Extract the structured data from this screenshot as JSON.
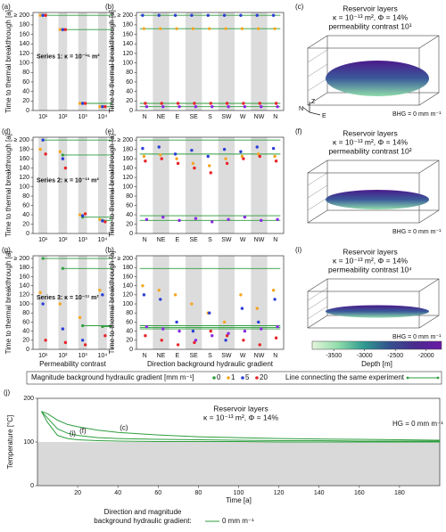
{
  "legend": {
    "title": "Magnitude background hydraulic gradient [mm m⁻¹]",
    "items": [
      {
        "label": "0",
        "color": "#2e9e3e"
      },
      {
        "label": "1",
        "color": "#f5a623"
      },
      {
        "label": "5",
        "color": "#2b3fd6"
      },
      {
        "label": "20",
        "color": "#e8252a"
      }
    ],
    "line_label": "Line connecting the same experiment",
    "line_color": "#2e9e3e"
  },
  "chart_data": [
    {
      "type": "scatter-contrast",
      "label": "(a)",
      "annotation": "Series 1: κ = 10⁻¹⁵ m²",
      "ylabel": "Time to thermal breakthrough [a]",
      "categories": [
        "10¹",
        "10²",
        "10³",
        "10⁴"
      ],
      "ylim": [
        0,
        206
      ],
      "yticks": [
        0,
        20,
        40,
        60,
        80,
        100,
        120,
        140,
        160,
        180,
        {
          "value": 200,
          "label": "≥ 200"
        }
      ],
      "lines": {
        "color": "#2e9e3e",
        "values": [
          200,
          170,
          15,
          8
        ]
      },
      "points": [
        {
          "color": "#f5a623",
          "values": [
            200,
            170,
            15,
            8
          ]
        },
        {
          "color": "#2b3fd6",
          "values": [
            200,
            170,
            15,
            8
          ]
        },
        {
          "color": "#e8252a",
          "values": [
            200,
            170,
            15,
            8
          ]
        }
      ]
    },
    {
      "type": "scatter-direction",
      "label": "(b)",
      "ylabel": "Time to thermal breakthrough [a]",
      "categories": [
        "N",
        "NE",
        "E",
        "SE",
        "S",
        "SW",
        "W",
        "NW",
        "N"
      ],
      "ylim": [
        0,
        206
      ],
      "yticks": [
        0,
        20,
        40,
        60,
        80,
        100,
        120,
        140,
        160,
        180,
        {
          "value": 200,
          "label": "≥ 200"
        }
      ],
      "lines": {
        "color": "#2e9e3e",
        "values": [
          200,
          172,
          15,
          8
        ]
      },
      "points": [
        {
          "color": "#2b3fd6",
          "values": [
            200,
            200,
            200,
            200,
            200,
            200,
            200,
            200,
            200
          ]
        },
        {
          "color": "#f5a623",
          "values": [
            172,
            172,
            172,
            172,
            172,
            172,
            172,
            172,
            172
          ]
        },
        {
          "color": "#e8252a",
          "values": [
            15,
            15,
            15,
            15,
            15,
            15,
            15,
            15,
            15
          ]
        },
        {
          "color": "#8a2be2",
          "values": [
            8,
            8,
            8,
            8,
            8,
            8,
            8,
            8,
            8
          ]
        }
      ]
    },
    {
      "type": "render",
      "label": "(c)",
      "title": "Reservoir layers",
      "subtitle": "κ = 10⁻¹³ m², Φ = 14%",
      "note": "permeability contrast 10¹",
      "annotation": "BHG = 0 mm m⁻¹",
      "axes": [
        "N",
        "Z",
        "E"
      ]
    },
    {
      "type": "scatter-contrast",
      "label": "(d)",
      "annotation": "Series 2: κ = 10⁻¹³ m²",
      "ylabel": "Time to thermal breakthrough [a]",
      "categories": [
        "10¹",
        "10²",
        "10³",
        "10⁴"
      ],
      "ylim": [
        0,
        206
      ],
      "yticks": [
        0,
        20,
        40,
        60,
        80,
        100,
        120,
        140,
        160,
        180,
        {
          "value": 200,
          "label": "≥ 200"
        }
      ],
      "lines": {
        "color": "#2e9e3e",
        "values": [
          200,
          168,
          35,
          28
        ]
      },
      "points": [
        {
          "color": "#f5a623",
          "values": [
            180,
            175,
            40,
            30
          ]
        },
        {
          "color": "#2b3fd6",
          "values": [
            200,
            160,
            38,
            27
          ]
        },
        {
          "color": "#e8252a",
          "values": [
            170,
            140,
            42,
            25
          ]
        }
      ]
    },
    {
      "type": "scatter-direction",
      "label": "(e)",
      "ylabel": "Time to thermal breakthrough [a]",
      "categories": [
        "N",
        "NE",
        "E",
        "SE",
        "S",
        "SW",
        "W",
        "NW",
        "N"
      ],
      "ylim": [
        0,
        206
      ],
      "yticks": [
        0,
        20,
        40,
        60,
        80,
        100,
        120,
        140,
        160,
        180,
        {
          "value": 200,
          "label": "≥ 200"
        }
      ],
      "lines": {
        "color": "#2e9e3e",
        "values": [
          200,
          170,
          38,
          28
        ]
      },
      "points": [
        {
          "color": "#2b3fd6",
          "values": [
            182,
            185,
            170,
            178,
            165,
            180,
            175,
            185,
            182
          ]
        },
        {
          "color": "#f5a623",
          "values": [
            165,
            168,
            160,
            150,
            145,
            160,
            165,
            170,
            165
          ]
        },
        {
          "color": "#e8252a",
          "values": [
            155,
            160,
            150,
            140,
            130,
            150,
            160,
            165,
            155
          ]
        },
        {
          "color": "#8a2be2",
          "values": [
            30,
            35,
            28,
            32,
            25,
            30,
            35,
            28,
            30
          ]
        }
      ]
    },
    {
      "type": "render",
      "label": "(f)",
      "title": "Reservoir layers",
      "subtitle": "κ = 10⁻¹³ m², Φ = 14%",
      "note": "permeability contrast 10²",
      "annotation": "BHG = 0 mm m⁻¹"
    },
    {
      "type": "scatter-contrast",
      "label": "(g)",
      "annotation": "Series 3: κ = 10⁻¹¹ m²",
      "ylabel": "Time to thermal breakthrough [a]",
      "xlabel": "Permeability contrast",
      "categories": [
        "10¹",
        "10²",
        "10³",
        "10⁴"
      ],
      "ylim": [
        0,
        206
      ],
      "yticks": [
        0,
        20,
        40,
        60,
        80,
        100,
        120,
        140,
        160,
        180,
        {
          "value": 200,
          "label": "≥ 200"
        }
      ],
      "lines": {
        "color": "#2e9e3e",
        "values": [
          200,
          178,
          52,
          50
        ]
      },
      "points": [
        {
          "color": "#f5a623",
          "values": [
            125,
            100,
            70,
            130
          ]
        },
        {
          "color": "#2b3fd6",
          "values": [
            100,
            45,
            20,
            120
          ]
        },
        {
          "color": "#e8252a",
          "values": [
            20,
            15,
            10,
            30
          ]
        }
      ]
    },
    {
      "type": "scatter-direction",
      "label": "(h)",
      "ylabel": "Time to thermal breakthrough [a]",
      "xlabel": "Direction background hydraulic gradient",
      "categories": [
        "N",
        "NE",
        "E",
        "SE",
        "S",
        "SW",
        "W",
        "NW",
        "N"
      ],
      "ylim": [
        0,
        206
      ],
      "yticks": [
        0,
        20,
        40,
        60,
        80,
        100,
        120,
        140,
        160,
        180,
        {
          "value": 200,
          "label": "≥ 200"
        }
      ],
      "lines": {
        "color": "#2e9e3e",
        "values": [
          178,
          52,
          48,
          45
        ]
      },
      "points": [
        {
          "color": "#f5a623",
          "values": [
            140,
            130,
            120,
            100,
            80,
            60,
            120,
            90,
            130
          ]
        },
        {
          "color": "#2b3fd6",
          "values": [
            120,
            110,
            60,
            40,
            80,
            20,
            90,
            60,
            110
          ]
        },
        {
          "color": "#e8252a",
          "values": [
            30,
            20,
            10,
            15,
            40,
            30,
            20,
            10,
            25
          ]
        },
        {
          "color": "#8a2be2",
          "values": [
            50,
            45,
            40,
            20,
            30,
            35,
            40,
            45,
            50
          ]
        }
      ]
    },
    {
      "type": "render",
      "label": "(i)",
      "title": "Reservoir layers",
      "subtitle": "κ = 10⁻¹³ m², Φ = 14%",
      "note": "permeability contrast 10⁴",
      "annotation": "BHG = 0 mm m⁻¹"
    },
    {
      "type": "colorbar",
      "xlabel": "Depth [m]",
      "xlim": [
        -3850,
        -1750
      ],
      "xticks": [
        -3500,
        -3000,
        -2500,
        -2000
      ],
      "colors": [
        "#e6f5dc",
        "#8fdcaa",
        "#2e9a90",
        "#34508e",
        "#4a2a8e",
        "#6a1aa6"
      ]
    },
    {
      "type": "line",
      "label": "(j)",
      "title": "Reservoir layers",
      "subtitle": "κ = 10⁻¹³ m², Φ = 14%",
      "annotation": "HG = 0 mm m⁻¹",
      "xlabel": "Time [a]",
      "ylabel": "Temperature [°C]",
      "xlim": [
        0,
        200
      ],
      "xticks": [
        20,
        40,
        60,
        80,
        100,
        120,
        140,
        160,
        180
      ],
      "ylim": [
        0,
        200
      ],
      "yticks": [
        0,
        100,
        200
      ],
      "shade_below": 100,
      "x": [
        2,
        5,
        10,
        15,
        20,
        30,
        40,
        60,
        80,
        100,
        120,
        140,
        160,
        180,
        200
      ],
      "series": [
        {
          "name": "(c)",
          "color": "#2e9e3e",
          "values": [
            170,
            165,
            150,
            140,
            135,
            127,
            122,
            116,
            112,
            110,
            108,
            107,
            106,
            105,
            104
          ]
        },
        {
          "name": "(f)",
          "color": "#2e9e3e",
          "values": [
            170,
            155,
            130,
            120,
            115,
            110,
            108,
            106,
            105,
            104,
            103,
            103,
            102,
            102,
            102
          ]
        },
        {
          "name": "(i)",
          "color": "#2e9e3e",
          "values": [
            170,
            145,
            115,
            108,
            105,
            103,
            102,
            101,
            101,
            101,
            100,
            100,
            100,
            100,
            100
          ]
        }
      ],
      "legend_title": [
        "Direction and magnitude",
        "background hydraulic gradient:"
      ],
      "legend_item": "0 mm m⁻¹"
    }
  ]
}
